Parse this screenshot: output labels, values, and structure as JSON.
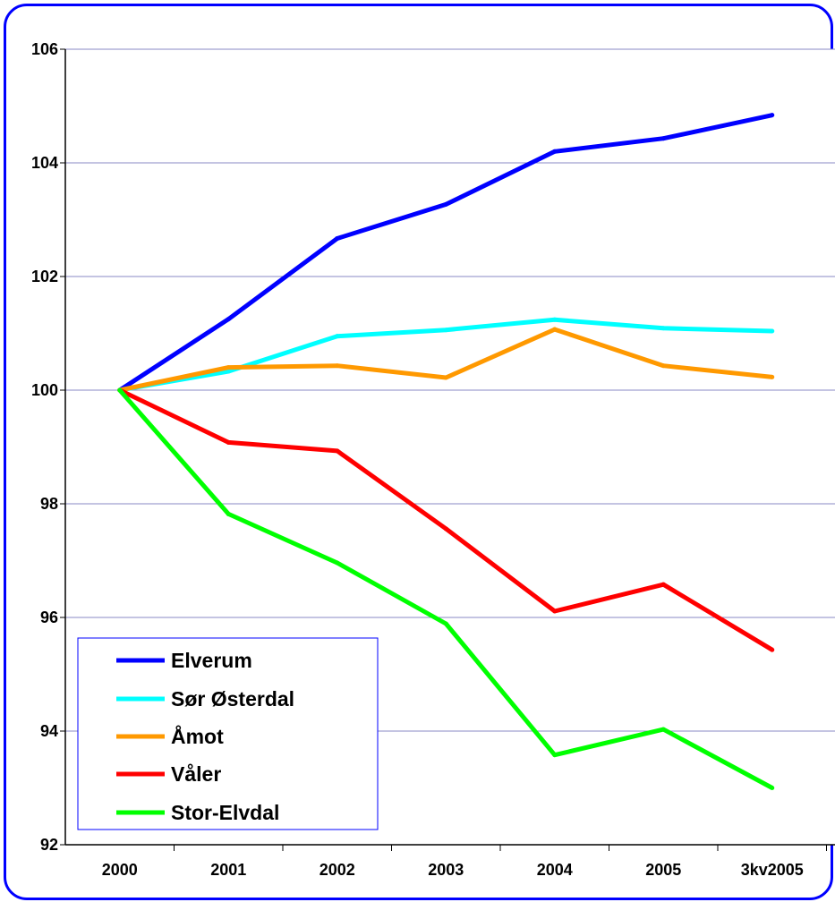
{
  "chart_data": {
    "type": "line",
    "title": "",
    "xlabel": "",
    "ylabel": "",
    "categories": [
      "2000",
      "2001",
      "2002",
      "2003",
      "2004",
      "2005",
      "3kv2005"
    ],
    "ylim": [
      92,
      106
    ],
    "yticks": [
      "92",
      "94",
      "96",
      "98",
      "100",
      "102",
      "104",
      "106"
    ],
    "grid": "horizontal",
    "legend_position": "bottom-left",
    "series": [
      {
        "name": "Elverum",
        "color": "#0000ff",
        "values": [
          100,
          101.25,
          102.67,
          103.27,
          104.2,
          104.43,
          104.84
        ]
      },
      {
        "name": "Sør Østerdal",
        "color": "#00ffff",
        "values": [
          100,
          100.33,
          100.95,
          101.06,
          101.24,
          101.09,
          101.04
        ]
      },
      {
        "name": "Åmot",
        "color": "#ff9900",
        "values": [
          100,
          100.4,
          100.43,
          100.22,
          101.07,
          100.43,
          100.23
        ]
      },
      {
        "name": "Våler",
        "color": "#ff0000",
        "values": [
          100,
          99.08,
          98.93,
          97.56,
          96.11,
          96.58,
          95.43
        ]
      },
      {
        "name": "Stor-Elvdal",
        "color": "#00ff00",
        "values": [
          100,
          97.82,
          96.96,
          95.89,
          93.58,
          94.03,
          93.0
        ]
      }
    ]
  }
}
